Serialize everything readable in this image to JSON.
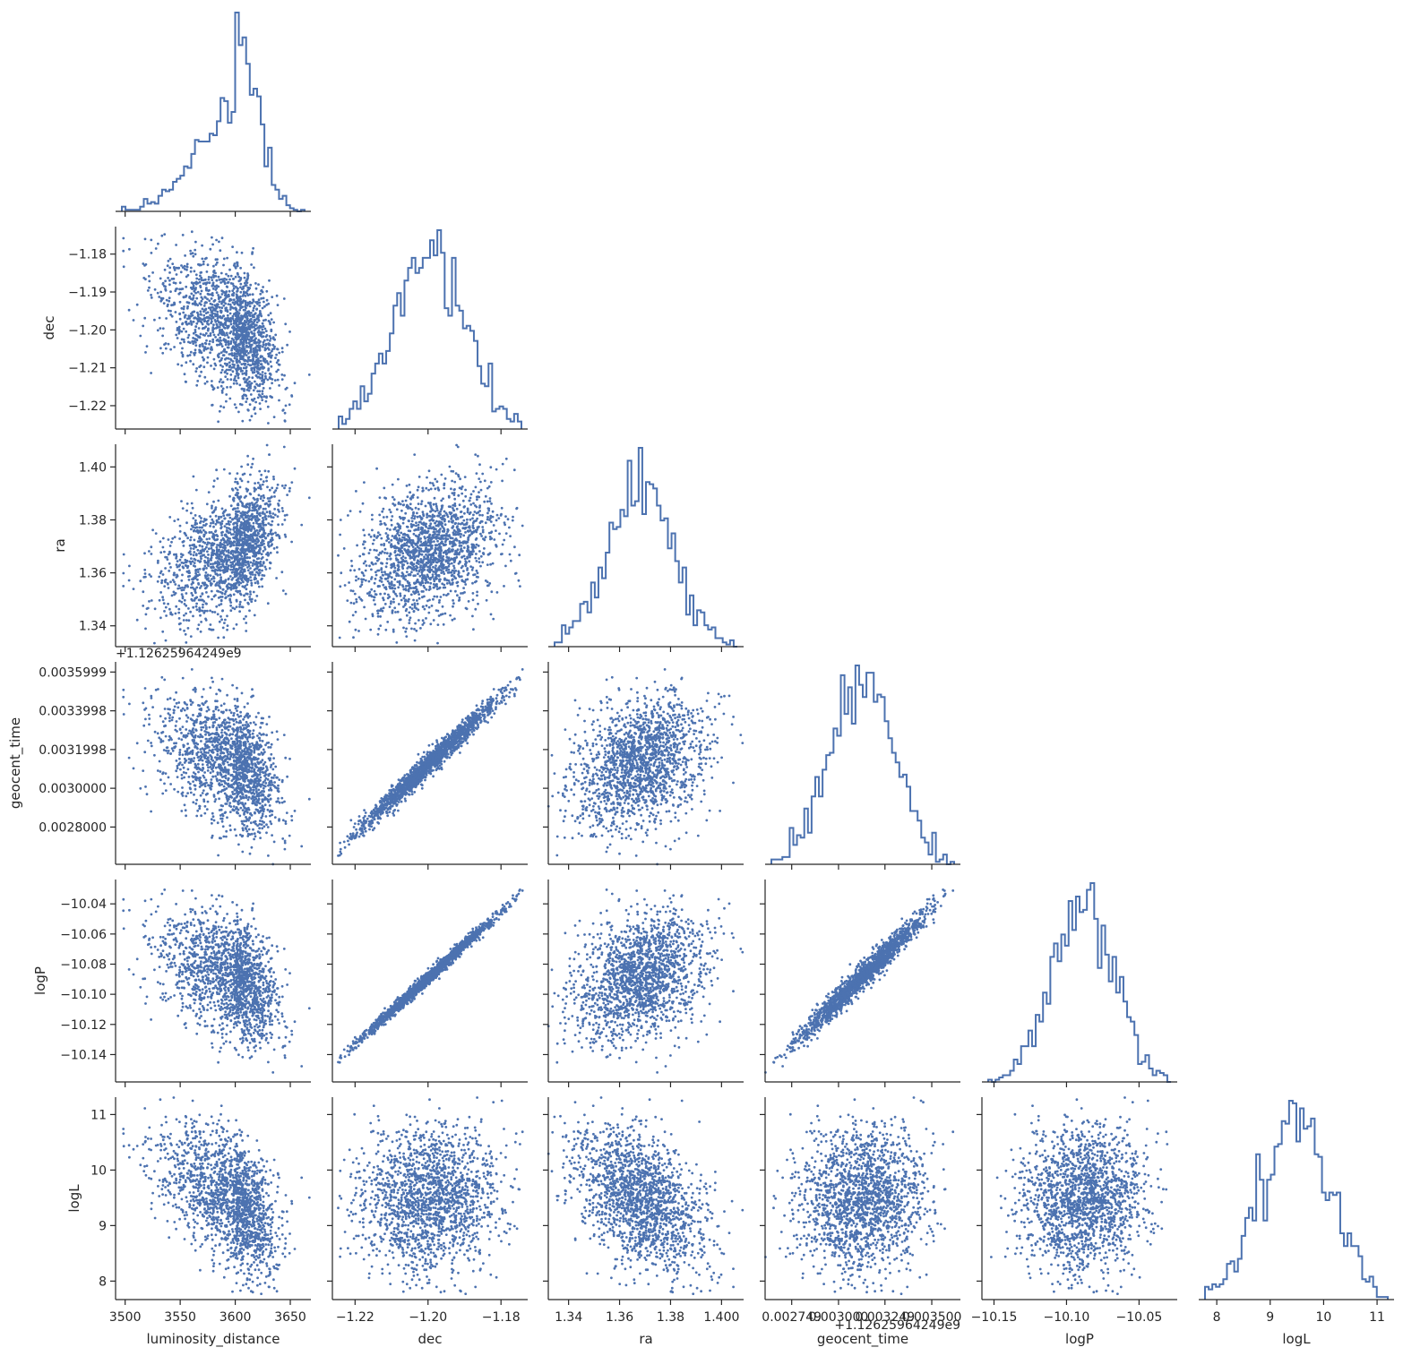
{
  "chart_data": {
    "type": "scatter",
    "layout": "corner",
    "color": "#4c72b0",
    "axis_color": "#262626",
    "variables": [
      {
        "name": "luminosity_distance",
        "label": "luminosity_distance",
        "range": [
          3497,
          3663
        ],
        "ticks": [
          3500,
          3550,
          3600,
          3650
        ],
        "tick_labels": [
          "3500",
          "3550",
          "3600",
          "3650"
        ],
        "mean": 3600,
        "sd": 27,
        "hist_skew": "left"
      },
      {
        "name": "dec",
        "label": "dec",
        "range": [
          -1.2245,
          -1.1744
        ],
        "ticks": [
          -1.22,
          -1.2,
          -1.18
        ],
        "tick_labels": [
          "−1.22",
          "−1.20",
          "−1.18"
        ],
        "ytick_values": [
          -1.18,
          -1.19,
          -1.2,
          -1.21,
          -1.22
        ],
        "ytick_labels": [
          "−1.18",
          "−1.19",
          "−1.20",
          "−1.21",
          "−1.22"
        ],
        "mean": -1.1995,
        "sd": 0.0095
      },
      {
        "name": "ra",
        "label": "ra",
        "range": [
          1.3345,
          1.4062
        ],
        "ticks": [
          1.34,
          1.36,
          1.38,
          1.4
        ],
        "tick_labels": [
          "1.34",
          "1.36",
          "1.38",
          "1.400"
        ],
        "ytick_values": [
          1.34,
          1.36,
          1.38,
          1.4
        ],
        "ytick_labels": [
          "1.34",
          "1.36",
          "1.38",
          "1.40"
        ],
        "mean": 1.368,
        "sd": 0.013
      },
      {
        "name": "geocent_time",
        "label": "geocent_time",
        "offset_text": "+1.12625964249e9",
        "xaxis_offset_text": "+1.12625964249e9",
        "range": [
          0.00264,
          0.00362
        ],
        "ticks": [
          0.002749,
          0.003,
          0.003249,
          0.0035
        ],
        "tick_labels": [
          "0.002749",
          "0.003000",
          "0.003249",
          "0.003500"
        ],
        "ytick_values": [
          0.0028,
          0.003,
          0.0031998,
          0.0033998,
          0.0035999
        ],
        "ytick_labels": [
          "0.0028000",
          "0.0030000",
          "0.0031998",
          "0.0033998",
          "0.0035999"
        ],
        "mean": 0.00313,
        "sd": 0.00017
      },
      {
        "name": "logP",
        "label": "logP",
        "range": [
          -10.154,
          -10.028
        ],
        "ticks": [
          -10.15,
          -10.1,
          -10.05
        ],
        "tick_labels": [
          "−10.15",
          "−10.10",
          "−10.05"
        ],
        "ytick_values": [
          -10.04,
          -10.06,
          -10.08,
          -10.1,
          -10.12,
          -10.14
        ],
        "ytick_labels": [
          "−10.04",
          "−10.06",
          "−10.08",
          "−10.10",
          "−10.12",
          "−10.14"
        ],
        "mean": -10.088,
        "sd": 0.021
      },
      {
        "name": "logL",
        "label": "logL",
        "range": [
          7.78,
          11.2
        ],
        "ticks": [
          8,
          9,
          10,
          11
        ],
        "tick_labels": [
          "8",
          "9",
          "10",
          "11"
        ],
        "ytick_values": [
          8,
          9,
          10,
          11
        ],
        "ytick_labels": [
          "8",
          "9",
          "10",
          "11"
        ],
        "mean": 9.45,
        "sd": 0.65
      }
    ],
    "correlations": {
      "dec|luminosity_distance": -0.45,
      "ra|luminosity_distance": 0.45,
      "ra|dec": 0.3,
      "geocent_time|luminosity_distance": -0.4,
      "geocent_time|dec": 0.985,
      "geocent_time|ra": 0.3,
      "logP|luminosity_distance": -0.4,
      "logP|dec": 0.995,
      "logP|ra": 0.3,
      "logP|geocent_time": 0.98,
      "logL|luminosity_distance": -0.5,
      "logL|dec": 0.05,
      "logL|ra": -0.45,
      "logL|geocent_time": 0.05,
      "logL|logP": 0.05
    },
    "n_points": 1700,
    "bins": 50,
    "grid": false,
    "legend": "none"
  }
}
